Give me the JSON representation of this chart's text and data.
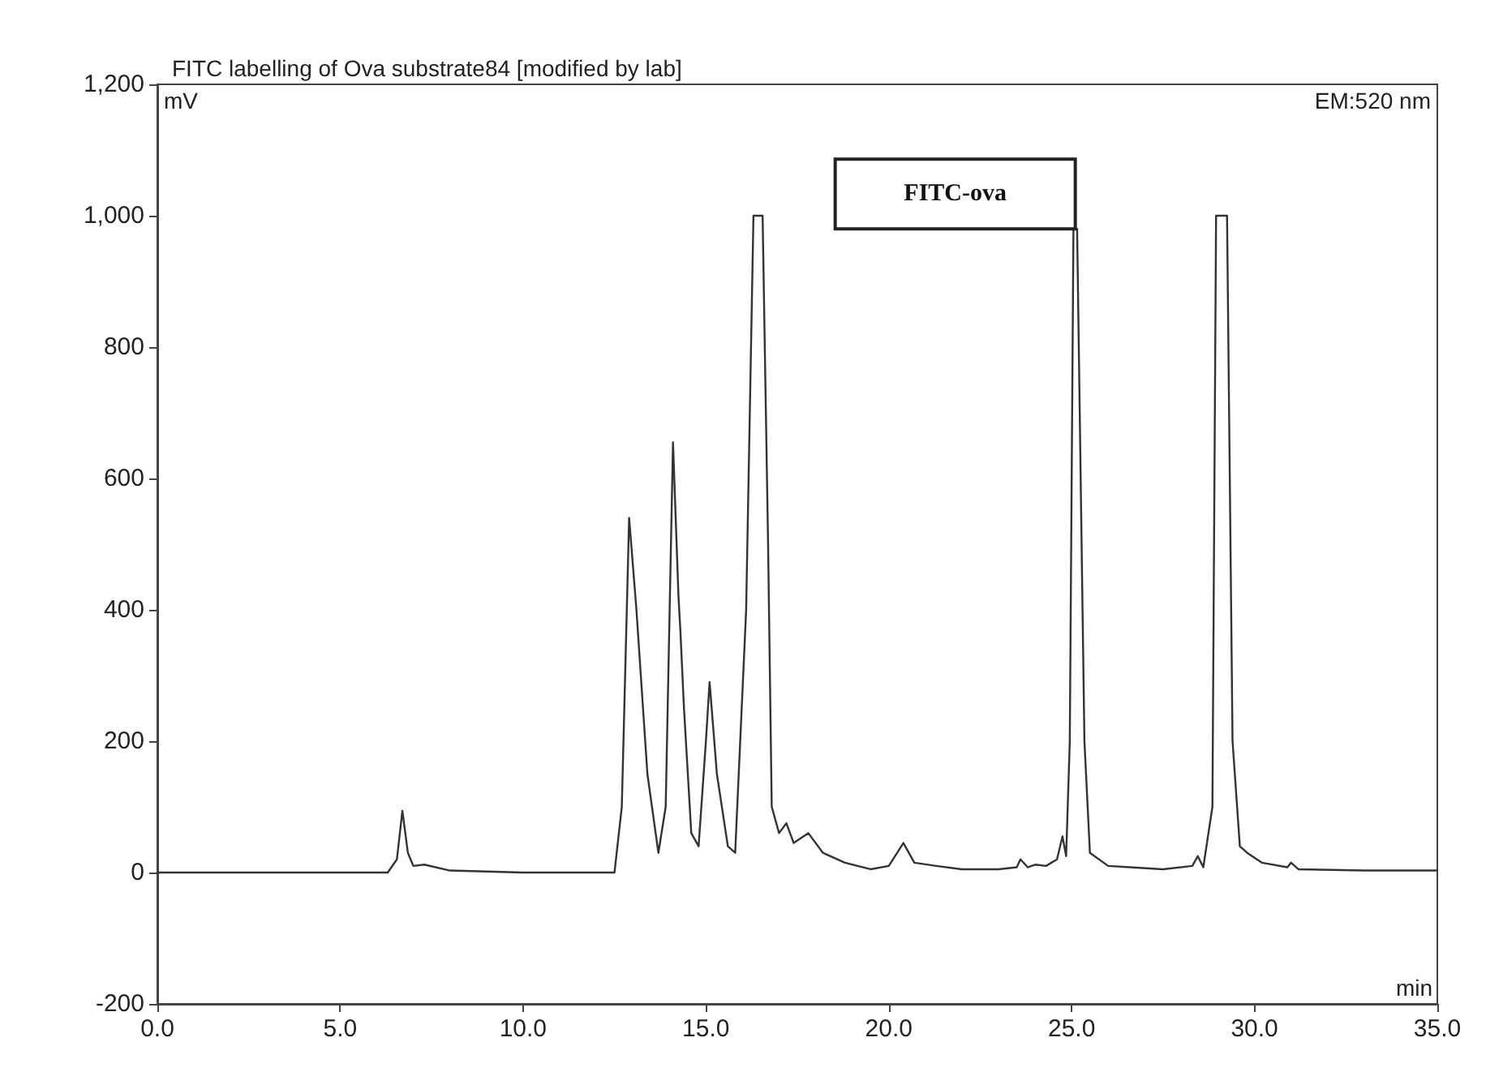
{
  "chart_data": {
    "type": "line",
    "title": "FITC labelling of Ova substrate84 [modified by lab]",
    "xlabel": "min",
    "ylabel": "mV",
    "annotations": [
      "EM:520 nm",
      {
        "text": "FITC-ova",
        "x": 25.1,
        "y": 980
      }
    ],
    "x": [
      0,
      6.3,
      6.55,
      6.7,
      6.85,
      7.0,
      7.3,
      8,
      10,
      12.5,
      12.7,
      12.9,
      13.1,
      13.4,
      13.7,
      13.9,
      14.1,
      14.25,
      14.3,
      14.4,
      14.6,
      14.8,
      15.0,
      15.1,
      15.3,
      15.6,
      15.8,
      16.1,
      16.3,
      16.55,
      16.7,
      16.8,
      17.0,
      17.2,
      17.4,
      17.8,
      18.2,
      18.8,
      19.5,
      20.0,
      20.4,
      20.7,
      21.3,
      22,
      23,
      23.5,
      23.6,
      23.8,
      24.0,
      24.3,
      24.6,
      24.75,
      24.85,
      24.95,
      25.05,
      25.15,
      25.35,
      25.5,
      26,
      26.6,
      27.5,
      28.3,
      28.45,
      28.6,
      28.85,
      28.95,
      29.25,
      29.4,
      29.6,
      29.8,
      30.2,
      30.9,
      31.0,
      31.2,
      33,
      35
    ],
    "series": [
      {
        "color": "#333333",
        "values": [
          0,
          0,
          20,
          94,
          30,
          10,
          12,
          3,
          0,
          0,
          100,
          540,
          400,
          150,
          30,
          100,
          655,
          420,
          370,
          250,
          60,
          40,
          200,
          290,
          150,
          40,
          30,
          400,
          1000,
          1000,
          500,
          100,
          60,
          75,
          45,
          60,
          30,
          15,
          5,
          10,
          45,
          15,
          10,
          5,
          5,
          8,
          20,
          8,
          12,
          10,
          20,
          55,
          25,
          200,
          980,
          980,
          200,
          30,
          10,
          8,
          5,
          10,
          25,
          8,
          100,
          1000,
          1000,
          200,
          40,
          30,
          15,
          8,
          15,
          5,
          3,
          3
        ]
      }
    ],
    "xlim": [
      0,
      35
    ],
    "ylim": [
      -200,
      1200
    ],
    "xticks": [
      {
        "value": 0,
        "label": "0.0"
      },
      {
        "value": 5,
        "label": "5.0"
      },
      {
        "value": 10,
        "label": "10.0"
      },
      {
        "value": 15,
        "label": "15.0"
      },
      {
        "value": 20,
        "label": "20.0"
      },
      {
        "value": 25,
        "label": "25.0"
      },
      {
        "value": 30,
        "label": "30.0"
      },
      {
        "value": 35,
        "label": "35.0"
      }
    ],
    "yticks": [
      -200,
      0,
      200,
      400,
      600,
      800,
      {
        "value": 1000,
        "label": "1,000"
      },
      {
        "value": 1200,
        "label": "1,200"
      }
    ],
    "grid": false,
    "marker": "none",
    "line_style": "solid"
  }
}
